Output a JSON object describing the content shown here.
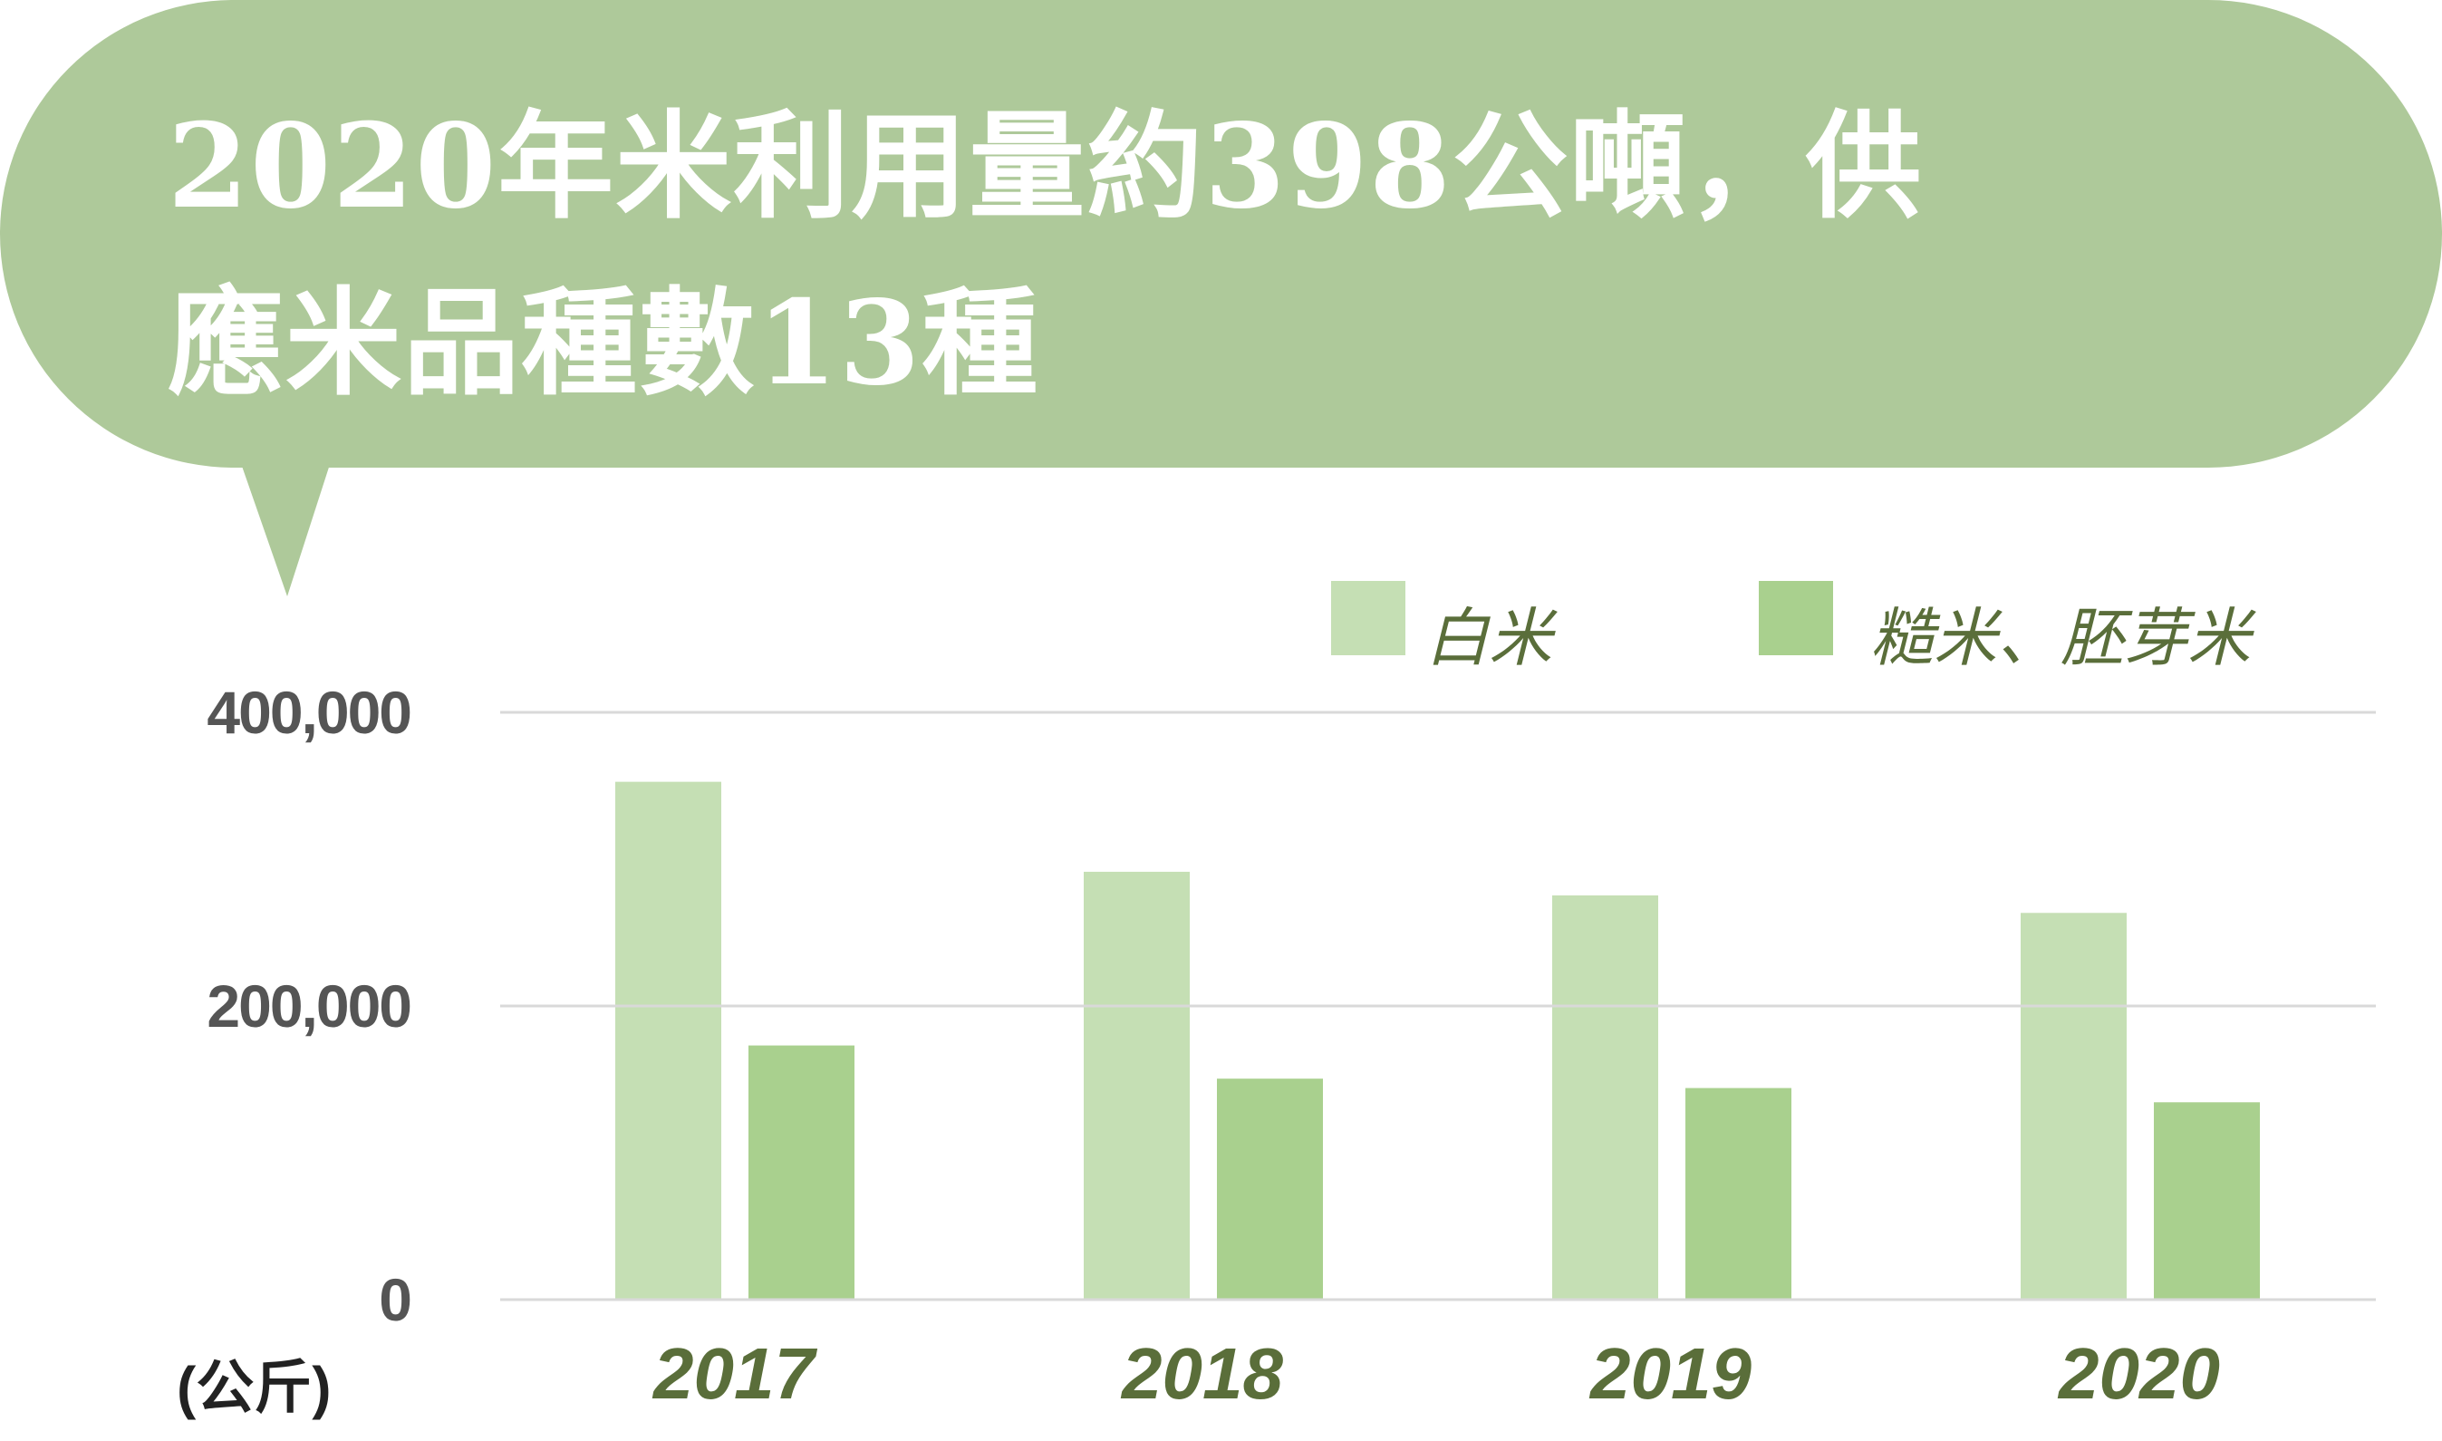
{
  "chart_data": {
    "type": "bar",
    "title": "2020年米利用量約398公噸，供應米品種數13種",
    "title_lines": [
      "2020年米利用量約398公噸，供",
      "應米品種數13種"
    ],
    "categories": [
      "2017",
      "2018",
      "2019",
      "2020"
    ],
    "series": [
      {
        "name": "白米",
        "color": "#c5dfb4",
        "values": [
          352700,
          291400,
          275300,
          263400
        ]
      },
      {
        "name": "糙米、胚芽米",
        "color": "#a9d08e",
        "values": [
          173100,
          150500,
          144100,
          134400
        ]
      }
    ],
    "ylabel": "(公斤)",
    "ylim": [
      0,
      400000
    ],
    "yticks": [
      "0",
      "200,000",
      "400,000"
    ],
    "ytick_values": [
      0,
      200000,
      400000
    ],
    "grid": true,
    "legend_position": "top-right",
    "colors": {
      "banner": "#aec99a",
      "grid": "#d9d9d9",
      "label_text": "#5a6e3a"
    }
  }
}
